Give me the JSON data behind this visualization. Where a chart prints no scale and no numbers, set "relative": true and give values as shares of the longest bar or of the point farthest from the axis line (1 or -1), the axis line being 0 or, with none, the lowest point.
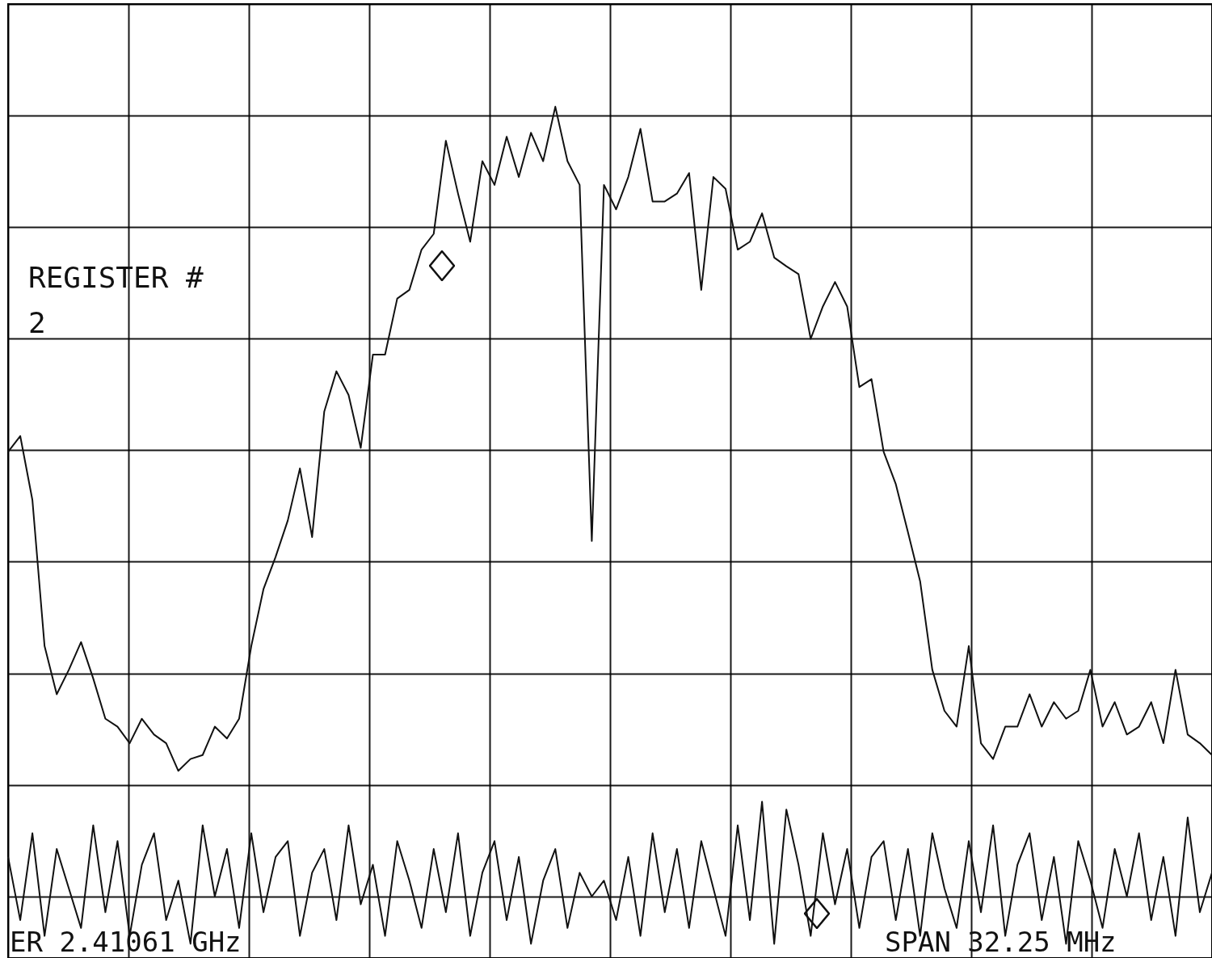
{
  "chart_data": {
    "type": "line",
    "relative": true,
    "grid": true,
    "line_style": "solid",
    "marker": "none",
    "categories": [
      null,
      null,
      null,
      null,
      null,
      null,
      null,
      null,
      null,
      null,
      null,
      null,
      null,
      null,
      null,
      null,
      null,
      null,
      null,
      null,
      null,
      null,
      null,
      null,
      null,
      null,
      null,
      null,
      null,
      null,
      null,
      null,
      null,
      null,
      null,
      null,
      null,
      null,
      null,
      null,
      null,
      null,
      null,
      null,
      null,
      null,
      null,
      null,
      null,
      null,
      null,
      null,
      null,
      null,
      null,
      null,
      null,
      null,
      null,
      null,
      null,
      null,
      null,
      null,
      null,
      null,
      null,
      null,
      null,
      null,
      null,
      null,
      null,
      null,
      null,
      null,
      null,
      null,
      null,
      null,
      null,
      null,
      null,
      null,
      null,
      null,
      null,
      null,
      null,
      null,
      null,
      null,
      null,
      null,
      null,
      null,
      null,
      null,
      null,
      null
    ],
    "annotations": [
      "REGISTER #\n2",
      "ER 2.41061 GHz",
      "SPAN 32.25 MHz"
    ],
    "series": [
      {
        "color": "#111111",
        "values": [
          0.563,
          0.583,
          0.502,
          0.317,
          0.256,
          0.287,
          0.322,
          0.276,
          0.225,
          0.215,
          0.194,
          0.225,
          0.205,
          0.194,
          0.159,
          0.174,
          0.179,
          0.215,
          0.2,
          0.225,
          0.317,
          0.389,
          0.43,
          0.476,
          0.542,
          0.455,
          0.614,
          0.665,
          0.635,
          0.568,
          0.686,
          0.686,
          0.757,
          0.768,
          0.819,
          0.839,
          0.957,
          0.89,
          0.829,
          0.931,
          0.901,
          0.962,
          0.911,
          0.967,
          0.931,
          1,
          0.931,
          0.901,
          0.45,
          0.901,
          0.87,
          0.911,
          0.972,
          0.88,
          0.88,
          0.89,
          0.916,
          0.768,
          0.911,
          0.896,
          0.819,
          0.829,
          0.865,
          0.809,
          0.798,
          0.788,
          0.706,
          0.747,
          0.778,
          0.747,
          0.645,
          0.655,
          0.563,
          0.522,
          0.461,
          0.399,
          0.287,
          0.235,
          0.215,
          0.317,
          0.194,
          0.174,
          0.215,
          0.215,
          0.256,
          0.215,
          0.246,
          0.225,
          0.235,
          0.287,
          0.215,
          0.246,
          0.205,
          0.215,
          0.246,
          0.194,
          0.287,
          0.205,
          0.194,
          0.179
        ]
      },
      {
        "color": "#111111",
        "values": [
          0.05,
          -0.03,
          0.08,
          -0.05,
          0.06,
          0.01,
          -0.04,
          0.09,
          -0.02,
          0.07,
          -0.05,
          0.04,
          0.08,
          -0.03,
          0.02,
          -0.06,
          0.09,
          0.0,
          0.06,
          -0.04,
          0.08,
          -0.02,
          0.05,
          0.07,
          -0.05,
          0.03,
          0.06,
          -0.03,
          0.09,
          -0.01,
          0.04,
          -0.05,
          0.07,
          0.02,
          -0.04,
          0.06,
          -0.02,
          0.08,
          -0.05,
          0.03,
          0.07,
          -0.03,
          0.05,
          -0.06,
          0.02,
          0.06,
          -0.04,
          0.03,
          0.0,
          0.02,
          -0.03,
          0.05,
          -0.05,
          0.08,
          -0.02,
          0.06,
          -0.04,
          0.07,
          0.01,
          -0.05,
          0.09,
          -0.03,
          0.12,
          -0.06,
          0.11,
          0.04,
          -0.05,
          0.08,
          -0.01,
          0.06,
          -0.04,
          0.05,
          0.07,
          -0.03,
          0.06,
          -0.05,
          0.08,
          0.01,
          -0.04,
          0.07,
          -0.02,
          0.09,
          -0.05,
          0.04,
          0.08,
          -0.03,
          0.05,
          -0.06,
          0.07,
          0.02,
          -0.04,
          0.06,
          0.0,
          0.08,
          -0.03,
          0.05,
          -0.05,
          0.1,
          -0.02,
          0.03
        ]
      }
    ]
  }
}
